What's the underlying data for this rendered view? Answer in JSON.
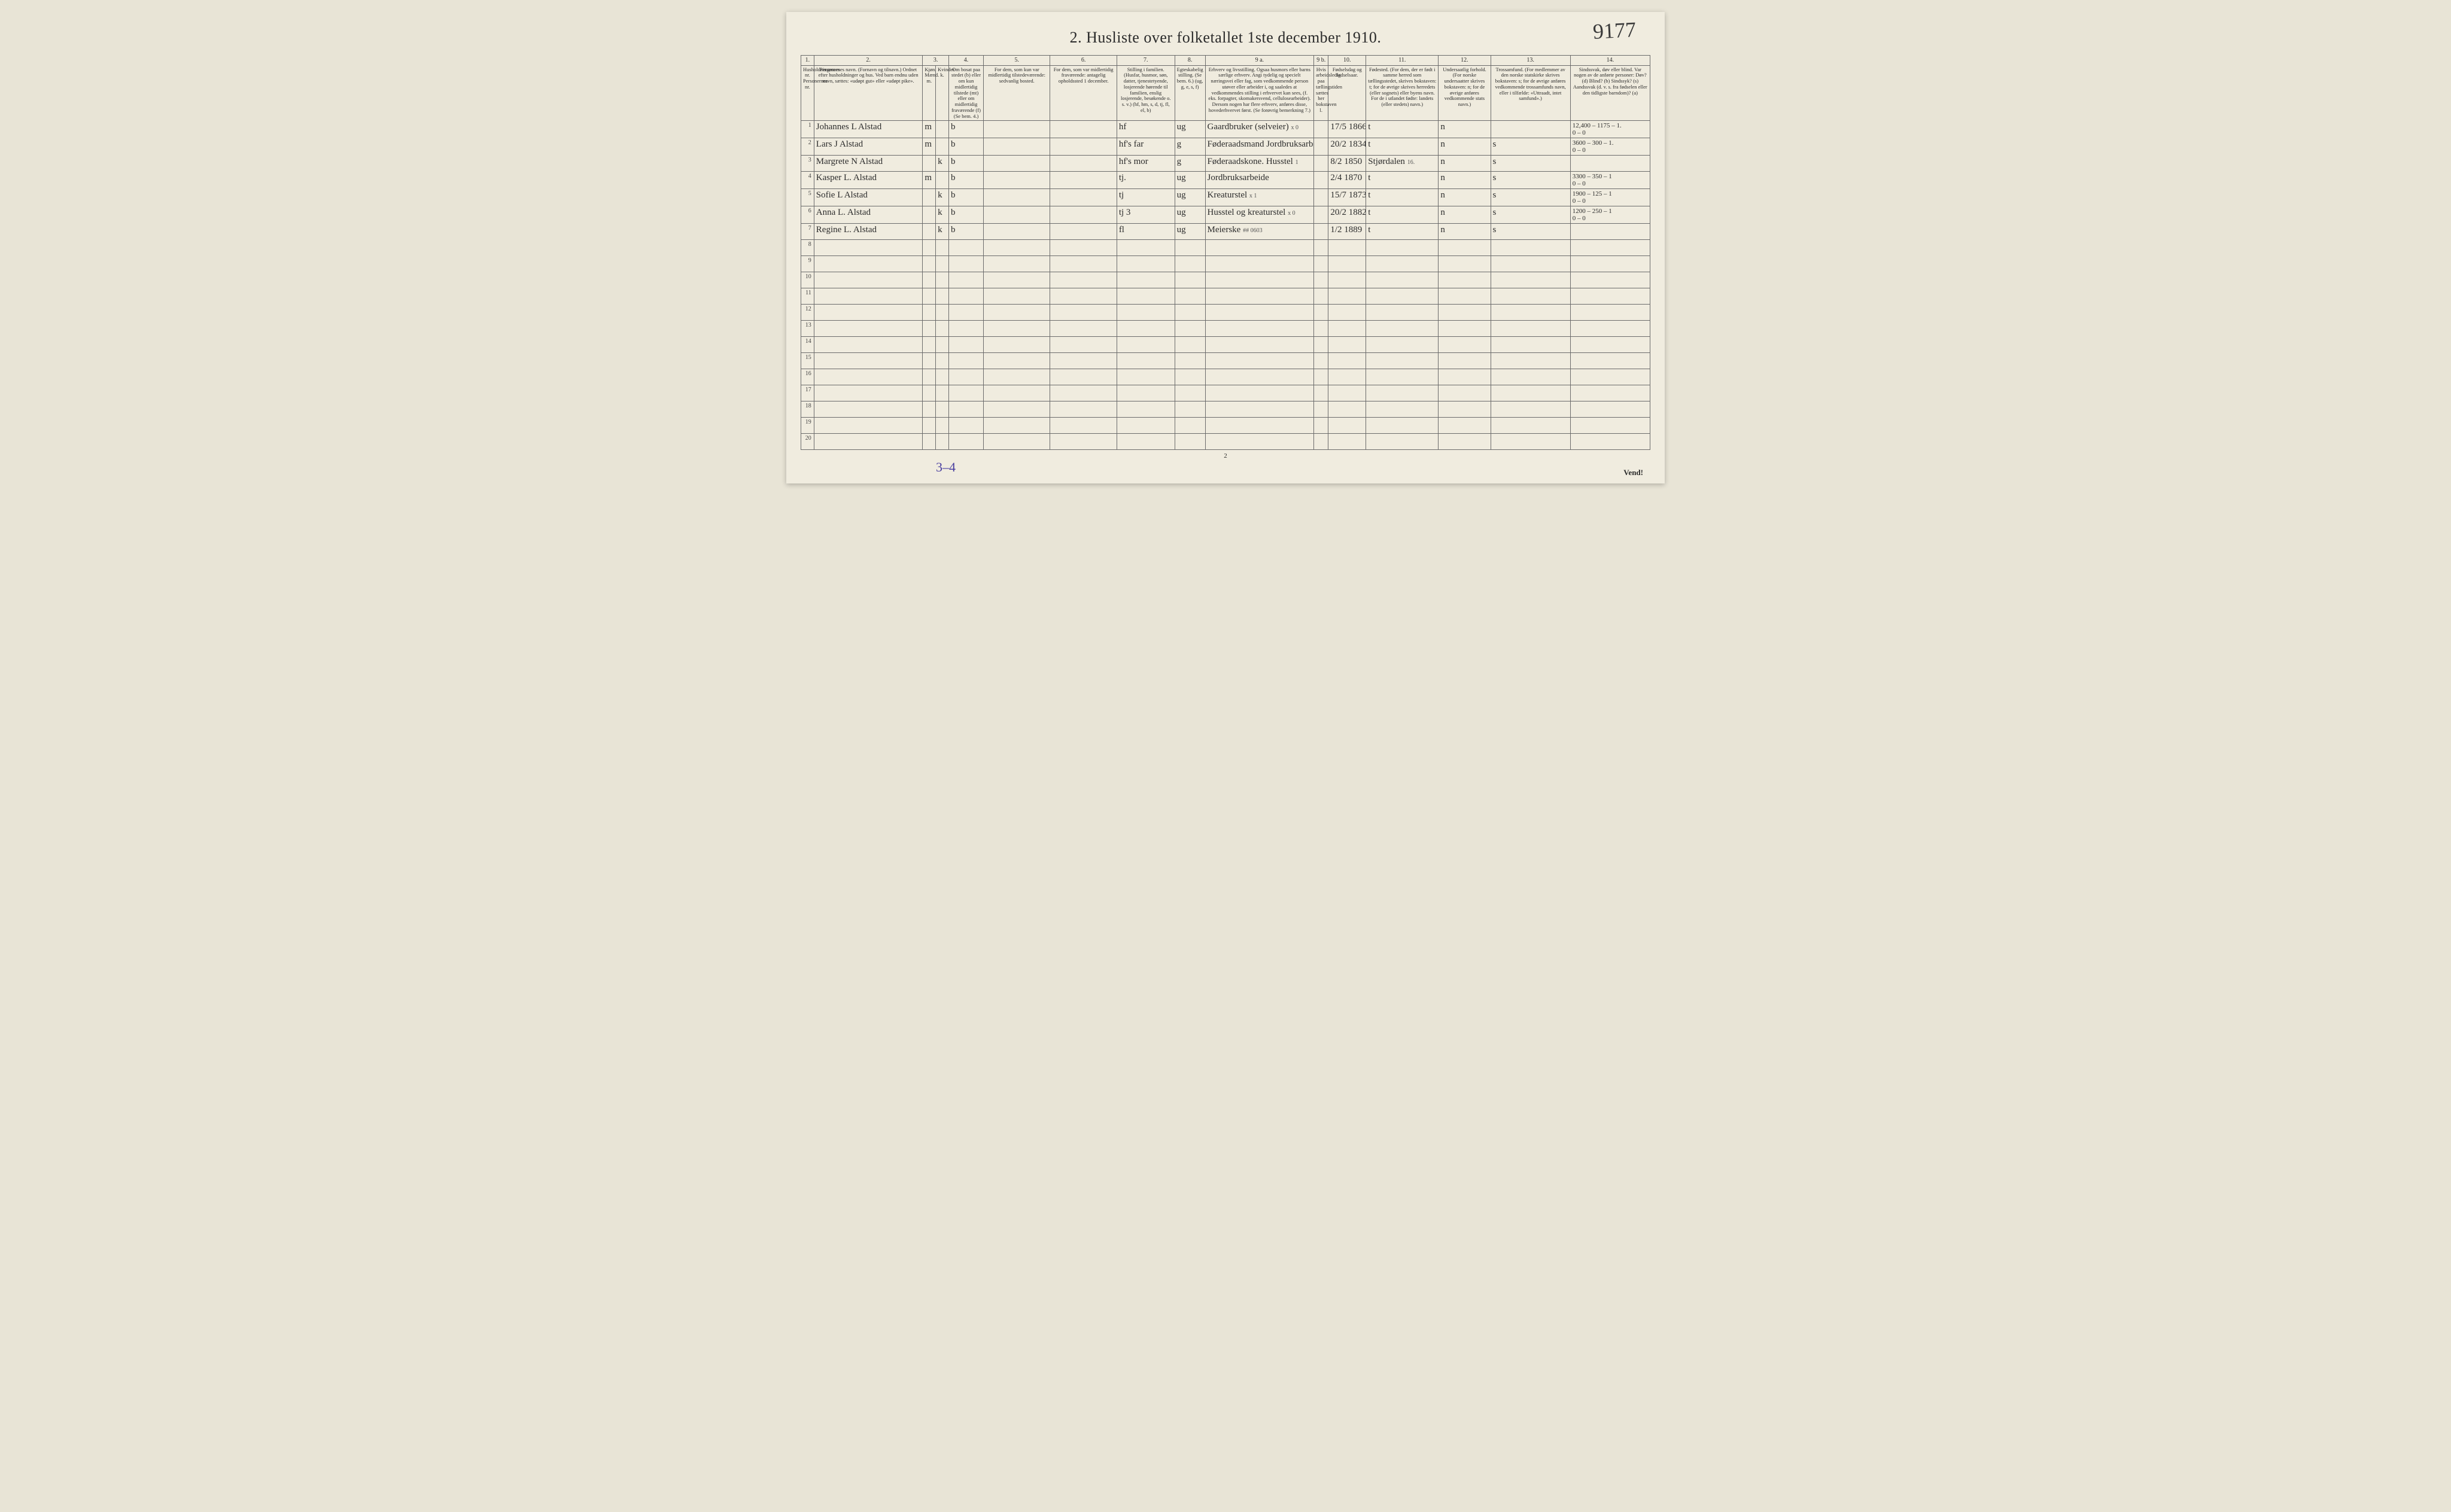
{
  "page_number_handwritten": "9177",
  "title": "2.  Husliste over folketallet 1ste december 1910.",
  "column_numbers": [
    "1.",
    "2.",
    "3.",
    "4.",
    "5.",
    "6.",
    "7.",
    "8.",
    "9 a.",
    "9 b.",
    "10.",
    "11.",
    "12.",
    "13.",
    "14."
  ],
  "headers": {
    "c1": "Husholdningernes nr.\nPersonernes nr.",
    "c2": "Personernes navn.\n(Fornavn og tilnavn.)\nOrdnet efter husholdninger og hus.\nVed barn endnu uden navn, sættes: «udøpt gut» eller «udøpt pike».",
    "c3": "Kjøn.\nMænd.  m.",
    "c3b": "Kvinder.  k.",
    "c4": "Om bosat paa stedet (b) eller om kun midlertidig tilstede (mt) eller om midlertidig fraværende (f)\n(Se bem. 4.)",
    "c5": "For dem, som kun var midlertidig tilstedeværende:\nsedvanlig bosted.",
    "c6": "For dem, som var midlertidig fraværende:\nantagelig opholdssted 1 december.",
    "c7": "Stilling i familien.\n(Husfar, husmor, søn, datter, tjenestetyende, losjerende hørende til familien, enslig losjerende, besøkende o. s. v.)\n(hf, hm, s, d, tj, fl, el, b)",
    "c8": "Egteskabelig stilling.\n(Se bem. 6.)\n(ug, g, e, s, f)",
    "c9a": "Erhverv og livsstilling.\nOgsaa husmors eller barns særlige erhverv. Angi tydelig og specielt næringsvei eller fag, som vedkommende person utøver eller arbeider i, og saaledes at vedkommendes stilling i erhvervet kan sees, (f. eks. forpagter, skomakersvend, cellulosearbeider). Dersom nogen har flere erhverv, anføres disse, hovederhvervet først.\n(Se forøvrig bemerkning 7.)",
    "c9b": "Hvis arbeidsledig paa tællingstiden sættes her bokstaven l.",
    "c10": "Fødselsdag og fødselsaar.",
    "c11": "Fødested.\n(For dem, der er født i samme herred som tællingsstedet, skrives bokstaven: t; for de øvrige skrives herredets (eller sognets) eller byens navn. For de i utlandet fødte: landets (eller stedets) navn.)",
    "c12": "Undersaatlig forhold.\n(For norske undersaatter skrives bokstaven: n; for de øvrige anføres vedkommende stats navn.)",
    "c13": "Trossamfund.\n(For medlemmer av den norske statskirke skrives bokstaven: s; for de øvrige anføres vedkommende trossamfunds navn, eller i tilfælde: «Uttraadt, intet samfund».)",
    "c14": "Sindssvak, døv eller blind.\nVar nogen av de anførte personer:\nDøv?  (d)\nBlind?  (b)\nSindssyk?  (s)\nAandssvak (d. v. s. fra fødselen eller den tidligste barndom)?  (a)"
  },
  "rows": [
    {
      "n": "1",
      "name": "Johannes L Alstad",
      "sex_m": "m",
      "sex_k": "",
      "res": "b",
      "col7": "hf",
      "col8": "ug",
      "col9a": "Gaardbruker (selveier)",
      "col9a_ann": "x 0",
      "col10": "17/5 1866",
      "col11": "t",
      "col12": "n",
      "col13": "",
      "col14": "12,400 – 1175 – 1.\n0   –   0"
    },
    {
      "n": "2",
      "name": "Lars J Alstad",
      "sex_m": "m",
      "sex_k": "",
      "res": "b",
      "col7": "hf's far",
      "col8": "g",
      "col9a": "Føderaadsmand Jordbruksarb.",
      "col9a_ann": "x 12",
      "col10": "20/2 1834",
      "col11": "t",
      "col12": "n",
      "col13": "s",
      "col14": "3600 – 300 – 1.\n0  –  0"
    },
    {
      "n": "3",
      "name": "Margrete N Alstad",
      "sex_m": "",
      "sex_k": "k",
      "res": "b",
      "col7": "hf's mor",
      "col8": "g",
      "col9a": "Føderaadskone. Husstel",
      "col9a_ann": "1",
      "col10": "8/2 1850",
      "col11": "Stjørdalen",
      "col11_ann": "16.",
      "col12": "n",
      "col13": "s",
      "col14": ""
    },
    {
      "n": "4",
      "name": "Kasper L. Alstad",
      "sex_m": "m",
      "sex_k": "",
      "res": "b",
      "col7": "tj.",
      "col8": "ug",
      "col9a": "Jordbruksarbeide",
      "col9a_ann": "",
      "col10": "2/4 1870",
      "col11": "t",
      "col12": "n",
      "col13": "s",
      "col14": "3300 – 350 – 1\n0  –  0"
    },
    {
      "n": "5",
      "name": "Sofie L Alstad",
      "sex_m": "",
      "sex_k": "k",
      "res": "b",
      "col7": "tj",
      "col8": "ug",
      "col9a": "Kreaturstel",
      "col9a_ann": "x 1",
      "col10": "15/7 1873",
      "col11": "t",
      "col12": "n",
      "col13": "s",
      "col14": "1900 – 125 – 1\n0  –  0"
    },
    {
      "n": "6",
      "name": "Anna L. Alstad",
      "sex_m": "",
      "sex_k": "k",
      "res": "b",
      "col7": "tj 3",
      "col8": "ug",
      "col9a": "Husstel og kreaturstel",
      "col9a_ann": "x 0",
      "col10": "20/2 1882",
      "col11": "t",
      "col12": "n",
      "col13": "s",
      "col14": "1200 – 250 – 1\n0  –  0"
    },
    {
      "n": "7",
      "name": "Regine L. Alstad",
      "sex_m": "",
      "sex_k": "k",
      "res": "b",
      "col7": "fl",
      "col8": "ug",
      "col9a": "Meierske",
      "col9a_ann": "## 0603",
      "col10": "1/2 1889",
      "col11": "t",
      "col12": "n",
      "col13": "s",
      "col14": ""
    }
  ],
  "empty_row_numbers": [
    "8",
    "9",
    "10",
    "11",
    "12",
    "13",
    "14",
    "15",
    "16",
    "17",
    "18",
    "19",
    "20"
  ],
  "footer_left": "3–4",
  "footer_center": "2",
  "footer_right": "Vend!",
  "colors": {
    "page_bg": "#f0ecdf",
    "outer_bg": "#e8e4d6",
    "rule": "#6b6b6b",
    "ink": "#2c2c2c",
    "purple_ink": "#4a3fa0"
  }
}
